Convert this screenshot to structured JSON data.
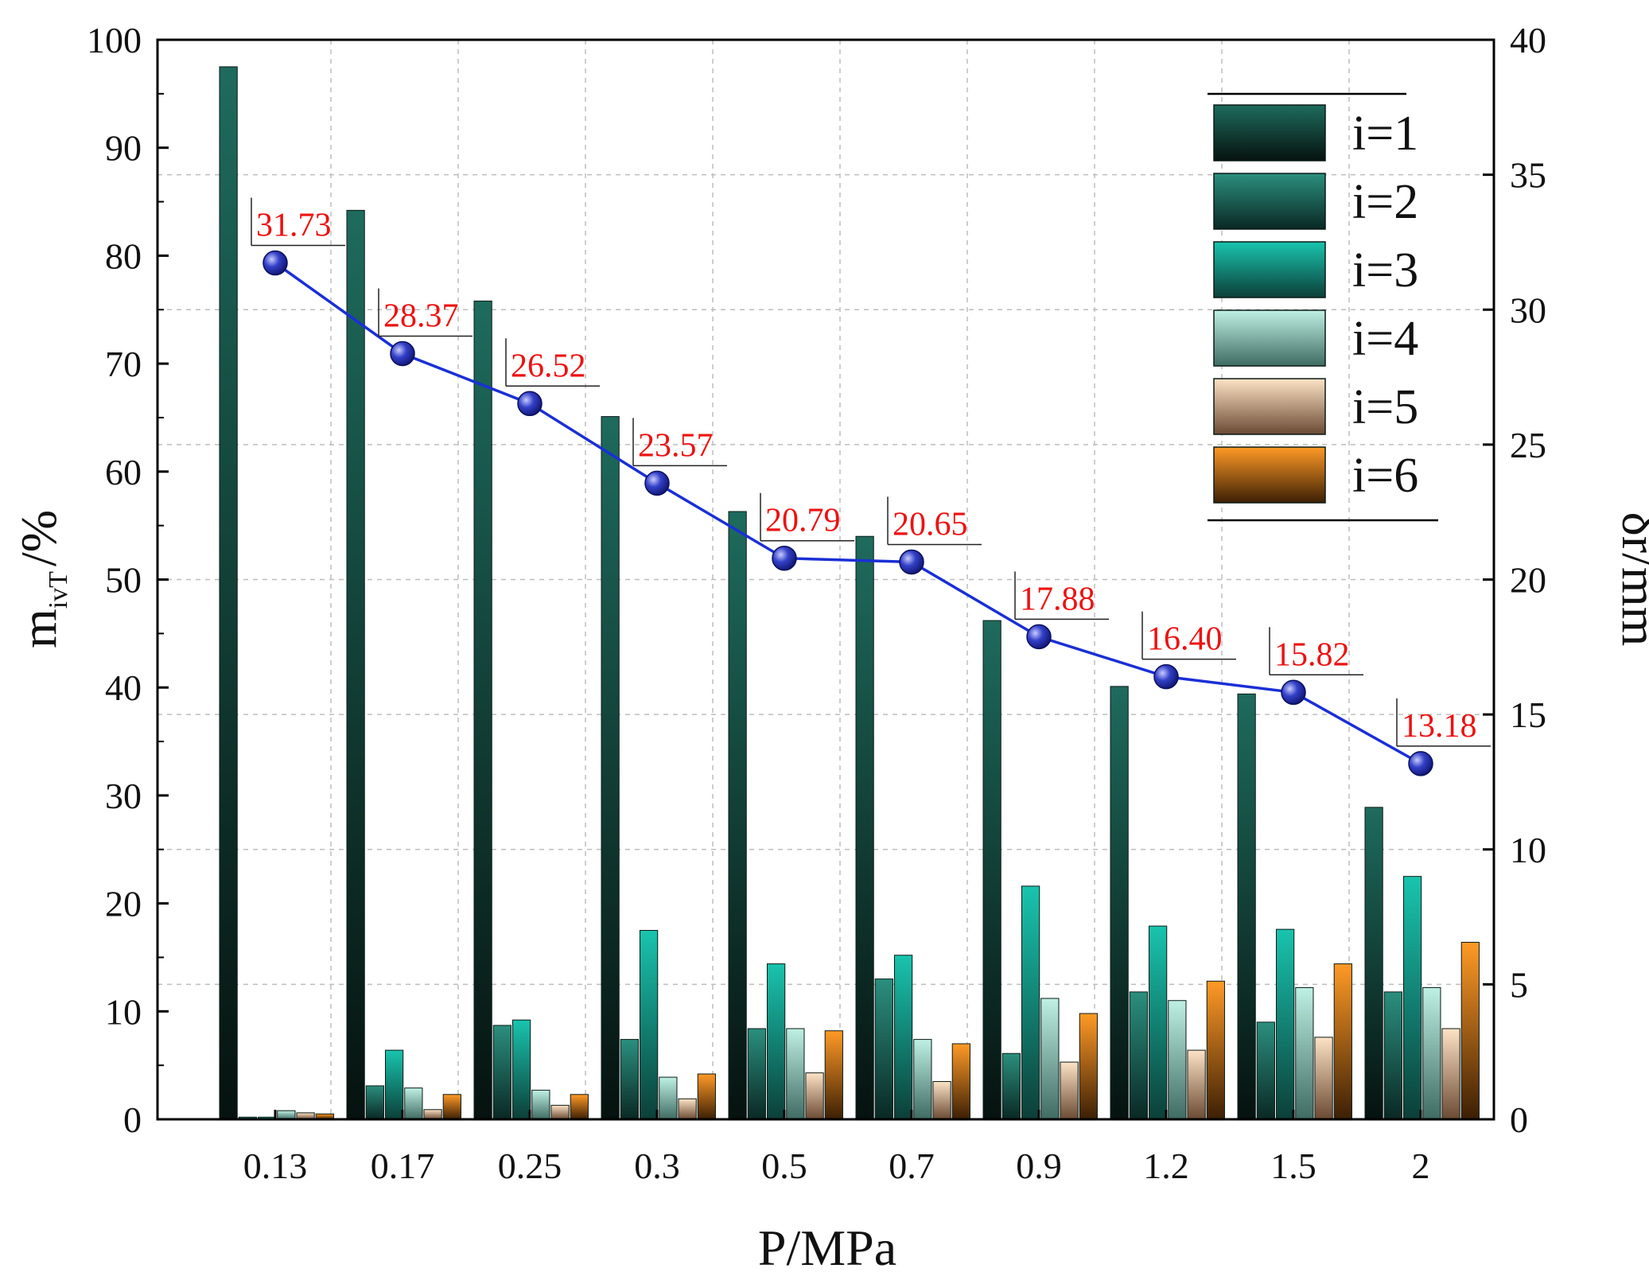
{
  "chart_data": {
    "type": "bar",
    "title": "",
    "xlabel": "P/MPa",
    "ylabel_main": "m",
    "ylabel_sub": "ivT",
    "ylabel_unit": "/%",
    "y2label": "δr/mm",
    "ylim": [
      0,
      100
    ],
    "y2lim": [
      0,
      40
    ],
    "y_ticks": [
      "0",
      "10",
      "20",
      "30",
      "40",
      "50",
      "60",
      "70",
      "80",
      "90",
      "100"
    ],
    "y2_ticks": [
      "0",
      "5",
      "10",
      "15",
      "20",
      "25",
      "30",
      "35",
      "40"
    ],
    "categories": [
      "0.13",
      "0.17",
      "0.25",
      "0.3",
      "0.5",
      "0.7",
      "0.9",
      "1.2",
      "1.5",
      "2"
    ],
    "grid": true,
    "legend_position": "top-right",
    "series": [
      {
        "name": "i=1",
        "color_top": "#1e6b5d",
        "color_bottom": "#06120f",
        "values": [
          97.5,
          84.2,
          75.8,
          65.1,
          56.3,
          54.0,
          46.2,
          40.1,
          39.4,
          28.9
        ]
      },
      {
        "name": "i=2",
        "color_top": "#2b8f7e",
        "color_bottom": "#0a2824",
        "values": [
          0.2,
          3.1,
          8.7,
          7.4,
          8.4,
          13.0,
          6.1,
          11.8,
          9.0,
          11.8
        ]
      },
      {
        "name": "i=3",
        "color_top": "#19c4ae",
        "color_bottom": "#0c3f38",
        "values": [
          0.2,
          6.4,
          9.2,
          17.5,
          14.4,
          15.2,
          21.6,
          17.9,
          17.6,
          22.5
        ]
      },
      {
        "name": "i=4",
        "color_top": "#bff0e4",
        "color_bottom": "#3f6b62",
        "values": [
          0.8,
          2.9,
          2.7,
          3.9,
          8.4,
          7.4,
          11.2,
          11.0,
          12.2,
          12.2
        ]
      },
      {
        "name": "i=5",
        "color_top": "#fde3c6",
        "color_bottom": "#6b4a33",
        "values": [
          0.6,
          0.9,
          1.3,
          1.9,
          4.3,
          3.5,
          5.3,
          6.4,
          7.6,
          8.4
        ]
      },
      {
        "name": "i=6",
        "color_top": "#ff9a26",
        "color_bottom": "#3c1f05",
        "values": [
          0.5,
          2.3,
          2.3,
          4.2,
          8.2,
          7.0,
          9.8,
          12.8,
          14.4,
          16.4
        ]
      }
    ],
    "line_series": {
      "name": "δr",
      "axis": "right",
      "color": "#1a2fd6",
      "values": [
        31.73,
        28.37,
        26.52,
        23.57,
        20.79,
        20.65,
        17.88,
        16.4,
        15.82,
        13.18
      ],
      "labels": [
        "31.73",
        "28.37",
        "26.52",
        "23.57",
        "20.79",
        "20.65",
        "17.88",
        "16.40",
        "15.82",
        "13.18"
      ],
      "label_color": "#ee1111"
    }
  }
}
